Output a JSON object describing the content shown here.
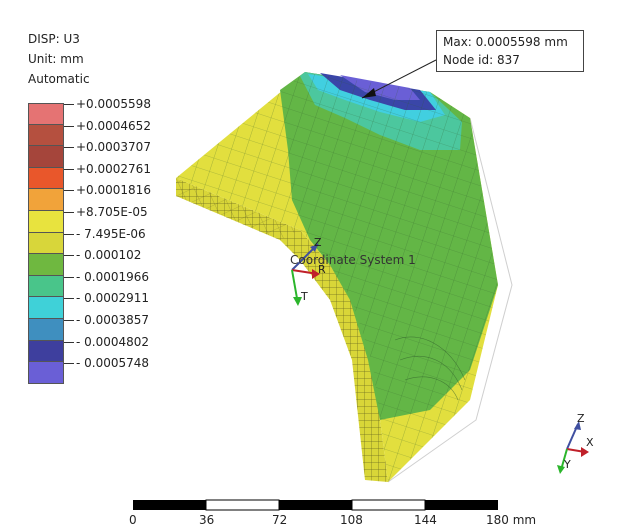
{
  "legend": {
    "title": "DISP: U3",
    "unit": "Unit: mm",
    "mode": "Automatic",
    "colors": [
      "#e57373",
      "#b5503f",
      "#a5453b",
      "#e9572b",
      "#f1a33a",
      "#e8e33e",
      "#d8d63a",
      "#6fb840",
      "#49c58a",
      "#3fd1d8",
      "#3f8fbf",
      "#3e3f9e",
      "#6a5fd6"
    ],
    "ticks": [
      "+0.0005598",
      "+0.0004652",
      "+0.0003707",
      "+0.0002761",
      "+0.0001816",
      "+8.705E-05",
      "- 7.495E-06",
      "- 0.000102",
      "- 0.0001966",
      "- 0.0002911",
      "- 0.0003857",
      "- 0.0004802",
      "- 0.0005748"
    ]
  },
  "callout": {
    "max": "Max: 0.0005598 mm",
    "node": "Node id: 837"
  },
  "coord_system": {
    "label": "Coordinate System 1",
    "axis_z": "Z",
    "axis_r": "R",
    "axis_t": "T"
  },
  "triad": {
    "x": "X",
    "y": "Y",
    "z": "Z"
  },
  "scale": {
    "labels": [
      "0",
      "36",
      "72",
      "108",
      "144",
      "180 mm"
    ]
  }
}
